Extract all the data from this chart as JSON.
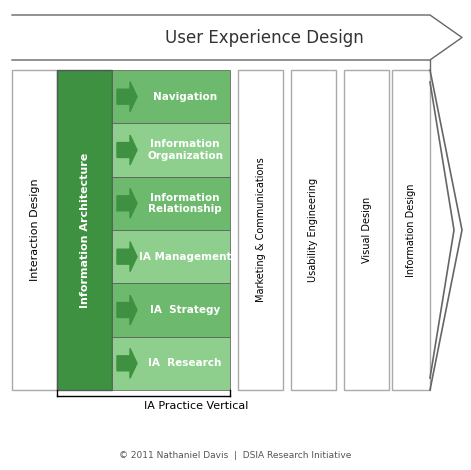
{
  "title": "User Experience Design",
  "footer": "© 2011 Nathaniel Davis  |  DSIA Research Initiative",
  "ia_label": "Information Architecture",
  "ia_vertical_label": "IA Practice Vertical",
  "interaction_design_label": "Interaction Design",
  "ia_items": [
    "Navigation",
    "Information\nOrganization",
    "Information\nRelationship",
    "IA Management",
    "IA  Strategy",
    "IA  Research"
  ],
  "other_columns": [
    "Marketing & Communications",
    "Usability Engineering",
    "Visual Design",
    "Information Design"
  ],
  "dark_green": "#3d9140",
  "light_green": "#6db96d",
  "lighter_green": "#8ecf8e",
  "col_border": "#aaaaaa",
  "bg_white": "#ffffff"
}
